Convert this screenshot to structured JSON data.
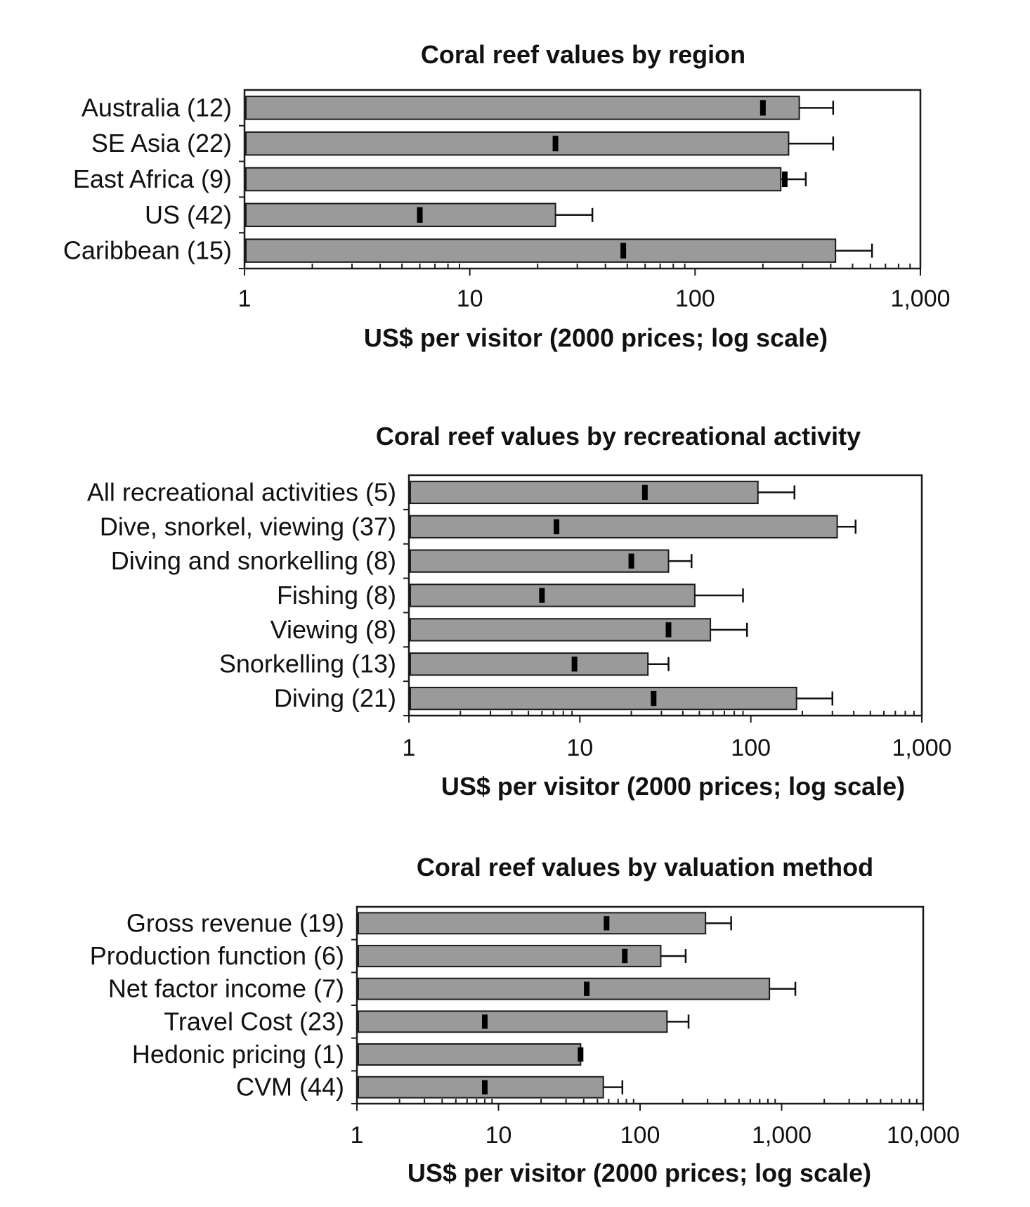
{
  "chart_data": [
    {
      "type": "bar",
      "orientation": "horizontal",
      "title": "Coral reef values by region",
      "xlabel": "US$ per visitor (2000 prices; log scale)",
      "ylabel": "",
      "xscale": "log",
      "xlim": [
        1,
        1000
      ],
      "xticks": [
        1,
        10,
        100,
        1000
      ],
      "xtick_labels": [
        "1",
        "10",
        "100",
        "1,000"
      ],
      "categories": [
        "Australia (12)",
        "SE Asia (22)",
        "East Africa (9)",
        "US (42)",
        "Caribbean (15)"
      ],
      "values": [
        290,
        260,
        240,
        24,
        420
      ],
      "error_upper": [
        410,
        410,
        310,
        35,
        610
      ],
      "median": [
        200,
        24,
        250,
        6,
        48
      ]
    },
    {
      "type": "bar",
      "orientation": "horizontal",
      "title": "Coral reef values by recreational activity",
      "xlabel": "US$ per visitor (2000 prices; log scale)",
      "ylabel": "",
      "xscale": "log",
      "xlim": [
        1,
        1000
      ],
      "xticks": [
        1,
        10,
        100,
        1000
      ],
      "xtick_labels": [
        "1",
        "10",
        "100",
        "1,000"
      ],
      "categories": [
        "All recreational activities (5)",
        "Dive, snorkel, viewing (37)",
        "Diving and snorkelling (8)",
        "Fishing (8)",
        "Viewing (8)",
        "Snorkelling (13)",
        "Diving (21)"
      ],
      "values": [
        110,
        320,
        33,
        47,
        58,
        25,
        185
      ],
      "error_upper": [
        180,
        410,
        45,
        90,
        95,
        33,
        300
      ],
      "median": [
        24,
        7.3,
        20,
        6,
        33,
        9.3,
        27
      ]
    },
    {
      "type": "bar",
      "orientation": "horizontal",
      "title": "Coral reef values by valuation method",
      "xlabel": "US$ per visitor (2000 prices; log scale)",
      "ylabel": "",
      "xscale": "log",
      "xlim": [
        1,
        10000
      ],
      "xticks": [
        1,
        10,
        100,
        1000,
        10000
      ],
      "xtick_labels": [
        "1",
        "10",
        "100",
        "1,000",
        "10,000"
      ],
      "categories": [
        "Gross revenue (19)",
        "Production function (6)",
        "Net factor income (7)",
        "Travel Cost (23)",
        "Hedonic pricing (1)",
        "CVM (44)"
      ],
      "values": [
        290,
        140,
        820,
        155,
        38,
        55
      ],
      "error_upper": [
        440,
        210,
        1250,
        220,
        38,
        75
      ],
      "median": [
        58,
        78,
        42,
        8,
        38,
        8
      ]
    }
  ]
}
